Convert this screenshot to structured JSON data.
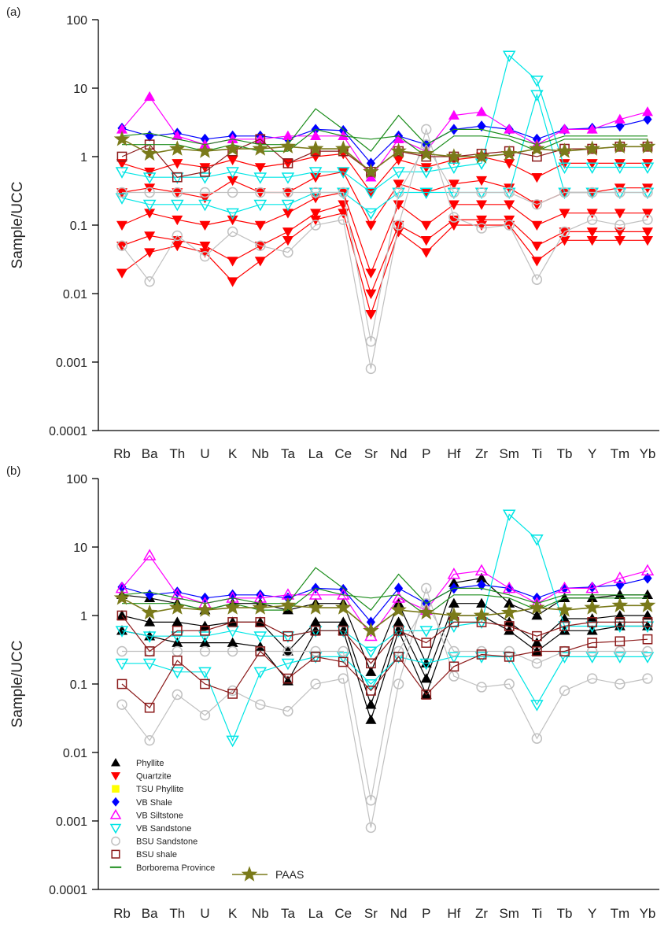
{
  "chart_data": [
    {
      "type": "line",
      "panel_label": "(a)",
      "ylabel": "Sample/UCC",
      "yscale": "log",
      "ylim": [
        0.0001,
        100
      ],
      "ytick_labels": [
        "0.0001",
        "0.001",
        "0.01",
        "0.1",
        "1",
        "10",
        "100"
      ],
      "ytick_values": [
        0.0001,
        0.001,
        0.01,
        0.1,
        1,
        10,
        100
      ],
      "categories": [
        "Rb",
        "Ba",
        "Th",
        "U",
        "K",
        "Nb",
        "Ta",
        "La",
        "Ce",
        "Sr",
        "Nd",
        "P",
        "Hf",
        "Zr",
        "Sm",
        "Ti",
        "Tb",
        "Y",
        "Tm",
        "Yb"
      ],
      "series": [
        {
          "name": "Quartzite",
          "marker": "triangle-down",
          "color": "#ff0000",
          "sample_lines": [
            [
              0.3,
              0.35,
              0.3,
              0.25,
              0.45,
              0.3,
              0.3,
              0.5,
              0.6,
              0.1,
              0.4,
              0.3,
              0.4,
              0.45,
              0.35,
              0.2,
              0.3,
              0.3,
              0.35,
              0.35
            ],
            [
              0.1,
              0.15,
              0.12,
              0.1,
              0.12,
              0.1,
              0.15,
              0.25,
              0.3,
              0.02,
              0.2,
              0.1,
              0.2,
              0.2,
              0.2,
              0.1,
              0.15,
              0.15,
              0.15,
              0.15
            ],
            [
              0.05,
              0.07,
              0.06,
              0.05,
              0.03,
              0.05,
              0.08,
              0.15,
              0.2,
              0.01,
              0.1,
              0.06,
              0.12,
              0.12,
              0.12,
              0.05,
              0.08,
              0.08,
              0.08,
              0.08
            ],
            [
              0.02,
              0.04,
              0.05,
              0.04,
              0.015,
              0.03,
              0.06,
              0.12,
              0.15,
              0.005,
              0.08,
              0.04,
              0.1,
              0.1,
              0.1,
              0.03,
              0.06,
              0.06,
              0.06,
              0.06
            ],
            [
              0.8,
              0.6,
              0.8,
              0.7,
              0.9,
              0.7,
              0.8,
              1.0,
              1.1,
              0.3,
              0.9,
              0.7,
              0.9,
              1.0,
              0.8,
              0.5,
              0.8,
              0.8,
              0.8,
              0.8
            ]
          ]
        },
        {
          "name": "VB Shale",
          "marker": "diamond",
          "color": "#0000ff",
          "sample_lines": [
            [
              2.6,
              2.0,
              2.2,
              1.8,
              2.0,
              2.0,
              1.8,
              2.5,
              2.4,
              0.8,
              2.0,
              1.5,
              2.5,
              2.8,
              2.5,
              1.8,
              2.5,
              2.6,
              2.8,
              3.5
            ]
          ]
        },
        {
          "name": "VB Siltstone",
          "marker": "triangle-up",
          "color": "#ff00ff",
          "sample_lines": [
            [
              2.5,
              7.5,
              2.0,
              1.5,
              1.8,
              1.8,
              2.0,
              2.0,
              2.0,
              0.5,
              1.8,
              1.2,
              4.0,
              4.5,
              2.5,
              1.5,
              2.5,
              2.5,
              3.5,
              4.5
            ]
          ]
        },
        {
          "name": "VB Sandstone",
          "marker": "triangle-down-open",
          "color": "#00e5e5",
          "sample_lines": [
            [
              0.6,
              0.5,
              0.5,
              0.5,
              0.6,
              0.5,
              0.5,
              0.6,
              0.6,
              0.3,
              0.6,
              0.6,
              0.7,
              0.8,
              30,
              13,
              0.7,
              0.7,
              0.7,
              0.7
            ],
            [
              0.25,
              0.2,
              0.2,
              0.2,
              0.15,
              0.2,
              0.2,
              0.3,
              0.3,
              0.15,
              0.3,
              0.3,
              0.3,
              0.3,
              0.3,
              8,
              0.3,
              0.3,
              0.3,
              0.3
            ]
          ]
        },
        {
          "name": "BSU Sandstone",
          "marker": "circle-open",
          "color": "#c0c0c0",
          "sample_lines": [
            [
              0.05,
              0.015,
              0.07,
              0.035,
              0.08,
              0.05,
              0.04,
              0.1,
              0.12,
              0.0008,
              0.1,
              2.5,
              0.13,
              0.09,
              0.1,
              0.016,
              0.08,
              0.12,
              0.1,
              0.12
            ],
            [
              0.3,
              0.3,
              0.3,
              0.3,
              0.3,
              0.3,
              0.3,
              0.3,
              0.3,
              0.002,
              0.3,
              1.5,
              0.3,
              0.3,
              0.3,
              0.2,
              0.3,
              0.3,
              0.3,
              0.3
            ]
          ]
        },
        {
          "name": "BSU shale",
          "marker": "square-open",
          "color": "#8b1a1a",
          "sample_lines": [
            [
              1.0,
              1.5,
              0.5,
              0.6,
              1.2,
              1.8,
              0.8,
              1.2,
              1.2,
              0.6,
              1.2,
              1.0,
              1.0,
              1.1,
              1.2,
              1.0,
              1.3,
              1.3,
              1.4,
              1.4
            ]
          ]
        },
        {
          "name": "Borborema Province",
          "marker": "none",
          "color": "#1a8c1a",
          "sample_lines": [
            [
              2.0,
              2.2,
              1.8,
              1.5,
              1.8,
              1.5,
              1.5,
              5.0,
              2.5,
              1.2,
              4.0,
              1.5,
              2.5,
              2.5,
              2.0,
              1.5,
              2.0,
              2.0,
              2.0,
              2.0
            ],
            [
              1.5,
              1.5,
              1.5,
              1.2,
              1.5,
              1.2,
              1.2,
              2.5,
              2.0,
              1.8,
              2.0,
              1.0,
              2.0,
              2.0,
              1.8,
              1.2,
              1.8,
              1.8,
              1.8,
              1.8
            ]
          ]
        },
        {
          "name": "PAAS",
          "marker": "star",
          "color": "#7a7a1a",
          "values": [
            1.8,
            1.1,
            1.3,
            1.2,
            1.3,
            1.3,
            1.4,
            1.3,
            1.3,
            0.6,
            1.2,
            1.1,
            1.0,
            1.0,
            1.1,
            1.3,
            1.2,
            1.3,
            1.4,
            1.4
          ]
        }
      ]
    },
    {
      "type": "line",
      "panel_label": "(b)",
      "ylabel": "Sample/UCC",
      "yscale": "log",
      "ylim": [
        0.0001,
        100
      ],
      "ytick_labels": [
        "0.0001",
        "0.001",
        "0.01",
        "0.1",
        "1",
        "10",
        "100"
      ],
      "ytick_values": [
        0.0001,
        0.001,
        0.01,
        0.1,
        1,
        10,
        100
      ],
      "categories": [
        "Rb",
        "Ba",
        "Th",
        "U",
        "K",
        "Nb",
        "Ta",
        "La",
        "Ce",
        "Sr",
        "Nd",
        "P",
        "Hf",
        "Zr",
        "Sm",
        "Ti",
        "Tb",
        "Y",
        "Tm",
        "Yb"
      ],
      "legend": {
        "placement": "bottom-left",
        "entries": [
          {
            "label": "Phyllite",
            "marker": "triangle-up",
            "color": "#000000"
          },
          {
            "label": "Quartzite",
            "marker": "triangle-down",
            "color": "#ff0000"
          },
          {
            "label": "TSU Phyllite",
            "marker": "square",
            "color": "#ffff00"
          },
          {
            "label": "VB Shale",
            "marker": "diamond",
            "color": "#0000ff"
          },
          {
            "label": "VB Siltstone",
            "marker": "triangle-up-open",
            "color": "#ff00ff"
          },
          {
            "label": "VB Sandstone",
            "marker": "triangle-down-open",
            "color": "#00e5e5"
          },
          {
            "label": "BSU Sandstone",
            "marker": "circle-open",
            "color": "#c0c0c0"
          },
          {
            "label": "BSU shale",
            "marker": "square-open",
            "color": "#8b1a1a"
          },
          {
            "label": "Borborema Province",
            "marker": "line",
            "color": "#1a8c1a"
          }
        ],
        "paas_label": "PAAS"
      },
      "series": [
        {
          "name": "Phyllite",
          "marker": "triangle-up",
          "color": "#000000",
          "sample_lines": [
            [
              2.0,
              1.8,
              1.5,
              1.2,
              1.5,
              1.5,
              1.2,
              1.5,
              1.5,
              0.15,
              1.5,
              0.2,
              3.0,
              3.5,
              1.5,
              1.0,
              1.8,
              1.8,
              2.0,
              2.0
            ],
            [
              1.0,
              0.8,
              0.8,
              0.7,
              0.8,
              0.8,
              0.3,
              0.8,
              0.8,
              0.05,
              0.8,
              0.12,
              1.5,
              1.5,
              0.8,
              0.4,
              0.9,
              0.9,
              1.0,
              1.0
            ],
            [
              0.6,
              0.5,
              0.4,
              0.4,
              0.4,
              0.35,
              0.11,
              0.6,
              0.6,
              0.03,
              0.6,
              0.07,
              1.0,
              1.0,
              0.6,
              0.3,
              0.6,
              0.6,
              0.7,
              0.7
            ]
          ]
        },
        {
          "name": "VB Shale",
          "marker": "diamond",
          "color": "#0000ff",
          "sample_lines": [
            [
              2.6,
              2.0,
              2.2,
              1.8,
              2.0,
              2.0,
              1.8,
              2.5,
              2.4,
              0.8,
              2.5,
              1.5,
              2.5,
              2.8,
              2.5,
              1.8,
              2.5,
              2.6,
              2.8,
              3.5
            ]
          ]
        },
        {
          "name": "VB Siltstone",
          "marker": "triangle-up-open",
          "color": "#ff00ff",
          "sample_lines": [
            [
              2.5,
              7.5,
              2.0,
              1.5,
              1.8,
              1.8,
              2.0,
              2.0,
              2.0,
              0.5,
              1.8,
              1.2,
              4.0,
              4.5,
              2.5,
              1.5,
              2.5,
              2.5,
              3.5,
              4.5
            ]
          ]
        },
        {
          "name": "VB Sandstone",
          "marker": "triangle-down-open",
          "color": "#00e5e5",
          "sample_lines": [
            [
              0.6,
              0.5,
              0.5,
              0.5,
              0.6,
              0.5,
              0.5,
              0.6,
              0.6,
              0.3,
              0.6,
              0.6,
              0.7,
              0.8,
              30,
              13,
              0.7,
              0.7,
              0.7,
              0.7
            ],
            [
              0.2,
              0.2,
              0.15,
              0.15,
              0.015,
              0.15,
              0.2,
              0.25,
              0.25,
              0.1,
              0.25,
              0.2,
              0.25,
              0.25,
              0.25,
              0.05,
              0.25,
              0.25,
              0.25,
              0.25
            ]
          ]
        },
        {
          "name": "BSU Sandstone",
          "marker": "circle-open",
          "color": "#c0c0c0",
          "sample_lines": [
            [
              0.05,
              0.015,
              0.07,
              0.035,
              0.08,
              0.05,
              0.04,
              0.1,
              0.12,
              0.0008,
              0.1,
              2.5,
              0.13,
              0.09,
              0.1,
              0.016,
              0.08,
              0.12,
              0.1,
              0.12
            ],
            [
              0.3,
              0.3,
              0.3,
              0.3,
              0.3,
              0.3,
              0.3,
              0.3,
              0.3,
              0.002,
              0.3,
              1.5,
              0.3,
              0.3,
              0.3,
              0.2,
              0.3,
              0.3,
              0.3,
              0.3
            ]
          ]
        },
        {
          "name": "BSU shale",
          "marker": "square-open",
          "color": "#8b1a1a",
          "sample_lines": [
            [
              0.1,
              0.045,
              0.22,
              0.1,
              0.072,
              0.3,
              0.12,
              0.25,
              0.21,
              0.08,
              0.25,
              0.07,
              0.18,
              0.27,
              0.25,
              0.3,
              0.3,
              0.4,
              0.42,
              0.45
            ],
            [
              1.0,
              0.3,
              0.6,
              0.6,
              0.8,
              0.8,
              0.5,
              0.6,
              0.6,
              0.2,
              0.6,
              0.4,
              0.8,
              0.8,
              0.7,
              0.5,
              0.7,
              0.8,
              0.8,
              0.8
            ]
          ]
        },
        {
          "name": "Borborema Province",
          "marker": "none",
          "color": "#1a8c1a",
          "sample_lines": [
            [
              2.0,
              2.2,
              1.8,
              1.5,
              1.8,
              1.5,
              1.5,
              5.0,
              2.5,
              1.2,
              4.0,
              1.5,
              2.5,
              2.5,
              2.0,
              1.5,
              2.0,
              2.0,
              2.0,
              2.0
            ],
            [
              1.5,
              1.5,
              1.5,
              1.2,
              1.5,
              1.2,
              1.2,
              2.5,
              2.0,
              1.8,
              2.0,
              1.0,
              2.0,
              2.0,
              1.8,
              1.2,
              1.8,
              1.8,
              1.8,
              1.8
            ]
          ]
        },
        {
          "name": "PAAS",
          "marker": "star",
          "color": "#7a7a1a",
          "values": [
            1.8,
            1.1,
            1.3,
            1.2,
            1.3,
            1.3,
            1.4,
            1.3,
            1.3,
            0.6,
            1.2,
            1.1,
            1.0,
            1.0,
            1.1,
            1.3,
            1.2,
            1.3,
            1.4,
            1.4
          ]
        }
      ]
    }
  ]
}
